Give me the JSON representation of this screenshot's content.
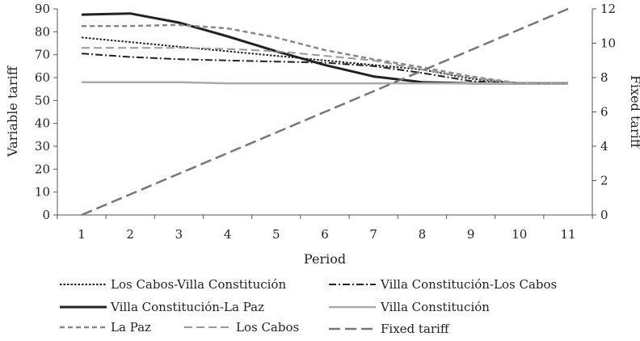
{
  "chart_data": {
    "type": "line",
    "xlabel": "Period",
    "ylabel_left": "Variable tariff",
    "ylabel_right": "Fixed tariff",
    "x": [
      1,
      2,
      3,
      4,
      5,
      6,
      7,
      8,
      9,
      10,
      11
    ],
    "ylim_left": [
      0,
      90
    ],
    "yticks_left": [
      0,
      10,
      20,
      30,
      40,
      50,
      60,
      70,
      80,
      90
    ],
    "ylim_right": [
      0,
      12
    ],
    "yticks_right": [
      0,
      2,
      4,
      6,
      8,
      10,
      12
    ],
    "grid": false,
    "legend_position": "bottom",
    "series": [
      {
        "name": "Los Cabos-Villa Constitución",
        "axis": "left",
        "style": "dotted",
        "color": "#222222",
        "values": [
          77.5,
          75.5,
          73.5,
          71.5,
          69.5,
          67.5,
          65.5,
          63.5,
          59.5,
          57.5,
          57.5
        ]
      },
      {
        "name": "Villa Constitución-Los Cabos",
        "axis": "left",
        "style": "dashdot",
        "color": "#222222",
        "values": [
          70.5,
          69,
          68,
          67.5,
          67,
          66.5,
          65,
          62,
          58.5,
          57.5,
          57.5
        ]
      },
      {
        "name": "Villa Constitución-La Paz",
        "axis": "left",
        "style": "solid-thick",
        "color": "#222222",
        "values": [
          87.5,
          88,
          84,
          78,
          71.5,
          65.5,
          60.5,
          58,
          57.5,
          57.5,
          57.5
        ]
      },
      {
        "name": "Villa Constitución",
        "axis": "left",
        "style": "solid-gray",
        "color": "#aaaaaa",
        "values": [
          58,
          58,
          58,
          57.5,
          57.5,
          57.5,
          57.5,
          57.5,
          57.5,
          57.5,
          57.5
        ]
      },
      {
        "name": "La Paz",
        "axis": "left",
        "style": "dashed-gray",
        "color": "#888888",
        "values": [
          82.5,
          82.5,
          83,
          81.5,
          77.5,
          72,
          68,
          64.5,
          60.5,
          57.5,
          57.5
        ]
      },
      {
        "name": "Los Cabos",
        "axis": "left",
        "style": "longdash-light",
        "color": "#999999",
        "values": [
          73,
          73,
          73,
          72.5,
          71.5,
          69.5,
          67.5,
          63.5,
          60,
          57.5,
          57.5
        ]
      },
      {
        "name": "Fixed tariff",
        "axis": "right",
        "style": "longdash-gray",
        "color": "#777777",
        "values": [
          0,
          1.2,
          2.4,
          3.6,
          4.8,
          6,
          7.2,
          8.4,
          9.6,
          10.8,
          12
        ]
      }
    ]
  }
}
